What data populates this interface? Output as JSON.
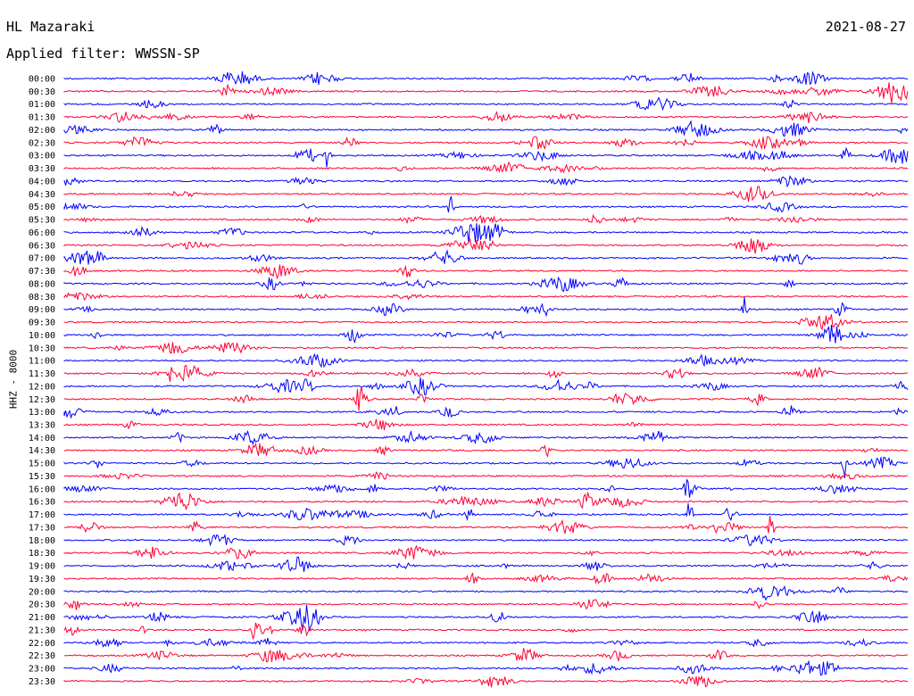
{
  "header": {
    "station": "HL Mazaraki",
    "filter": "Applied filter: WWSSN-SP",
    "date": "2021-08-27"
  },
  "chart_data": {
    "type": "line",
    "title": "HL Mazaraki",
    "subtitle": "Applied filter: WWSSN-SP",
    "date": "2021-08-27",
    "ylabel": "HHZ - 8000",
    "xlabel": "",
    "trace_colors": [
      "#0000ff",
      "#ff0033"
    ],
    "row_labels": [
      "00:00",
      "00:30",
      "01:00",
      "01:30",
      "02:00",
      "02:30",
      "03:00",
      "03:30",
      "04:00",
      "04:30",
      "05:00",
      "05:30",
      "06:00",
      "06:30",
      "07:00",
      "07:30",
      "08:00",
      "08:30",
      "09:00",
      "09:30",
      "10:00",
      "10:30",
      "11:00",
      "11:30",
      "12:00",
      "12:30",
      "13:00",
      "13:30",
      "14:00",
      "14:30",
      "15:00",
      "15:30",
      "16:00",
      "16:30",
      "17:00",
      "17:30",
      "18:00",
      "18:30",
      "19:00",
      "19:30",
      "20:00",
      "20:30",
      "21:00",
      "21:30",
      "22:00",
      "22:30",
      "23:00",
      "23:30"
    ],
    "row_minutes": 30,
    "grid": false,
    "legend": "none"
  }
}
